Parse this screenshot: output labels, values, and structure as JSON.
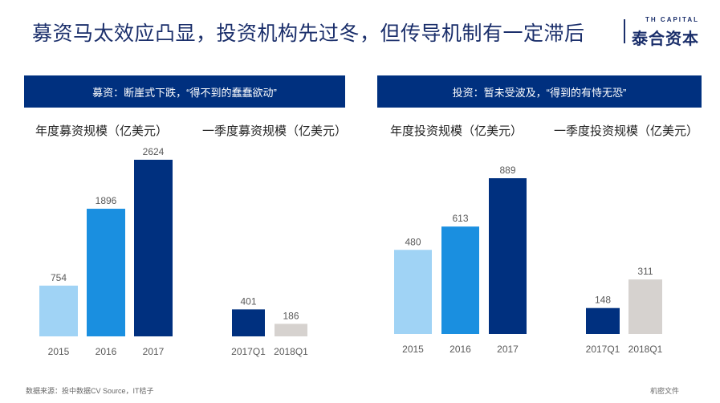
{
  "slide": {
    "title": "募资马太效应凸显，投资机构先过冬，但传导机制有一定滞后",
    "brand_en": "TH CAPITAL",
    "brand_cn": "泰合资本",
    "source": "数据来源：投中数据CV Source，IT桔子",
    "confidential": "机密文件"
  },
  "panels": [
    {
      "banner": "募资：断崖式下跌，“得不到的蠢蠢欲动”"
    },
    {
      "banner": "投资：暂未受波及，“得到的有恃无恐”"
    }
  ],
  "chart_data": [
    {
      "type": "bar",
      "title": "年度募资规模（亿美元）",
      "categories": [
        "2015",
        "2016",
        "2017"
      ],
      "values": [
        754,
        1896,
        2624
      ],
      "colors": [
        "#a0d3f5",
        "#1a8fe0",
        "#00307f"
      ]
    },
    {
      "type": "bar",
      "title": "一季度募资规模（亿美元）",
      "categories": [
        "2017Q1",
        "2018Q1"
      ],
      "values": [
        401,
        186
      ],
      "colors": [
        "#00307f",
        "#d6d2cf"
      ]
    },
    {
      "type": "bar",
      "title": "年度投资规模（亿美元）",
      "categories": [
        "2015",
        "2016",
        "2017"
      ],
      "values": [
        480,
        613,
        889
      ],
      "colors": [
        "#a0d3f5",
        "#1a8fe0",
        "#00307f"
      ]
    },
    {
      "type": "bar",
      "title": "一季度投资规模（亿美元）",
      "categories": [
        "2017Q1",
        "2018Q1"
      ],
      "values": [
        148,
        311
      ],
      "colors": [
        "#00307f",
        "#d6d2cf"
      ]
    }
  ]
}
